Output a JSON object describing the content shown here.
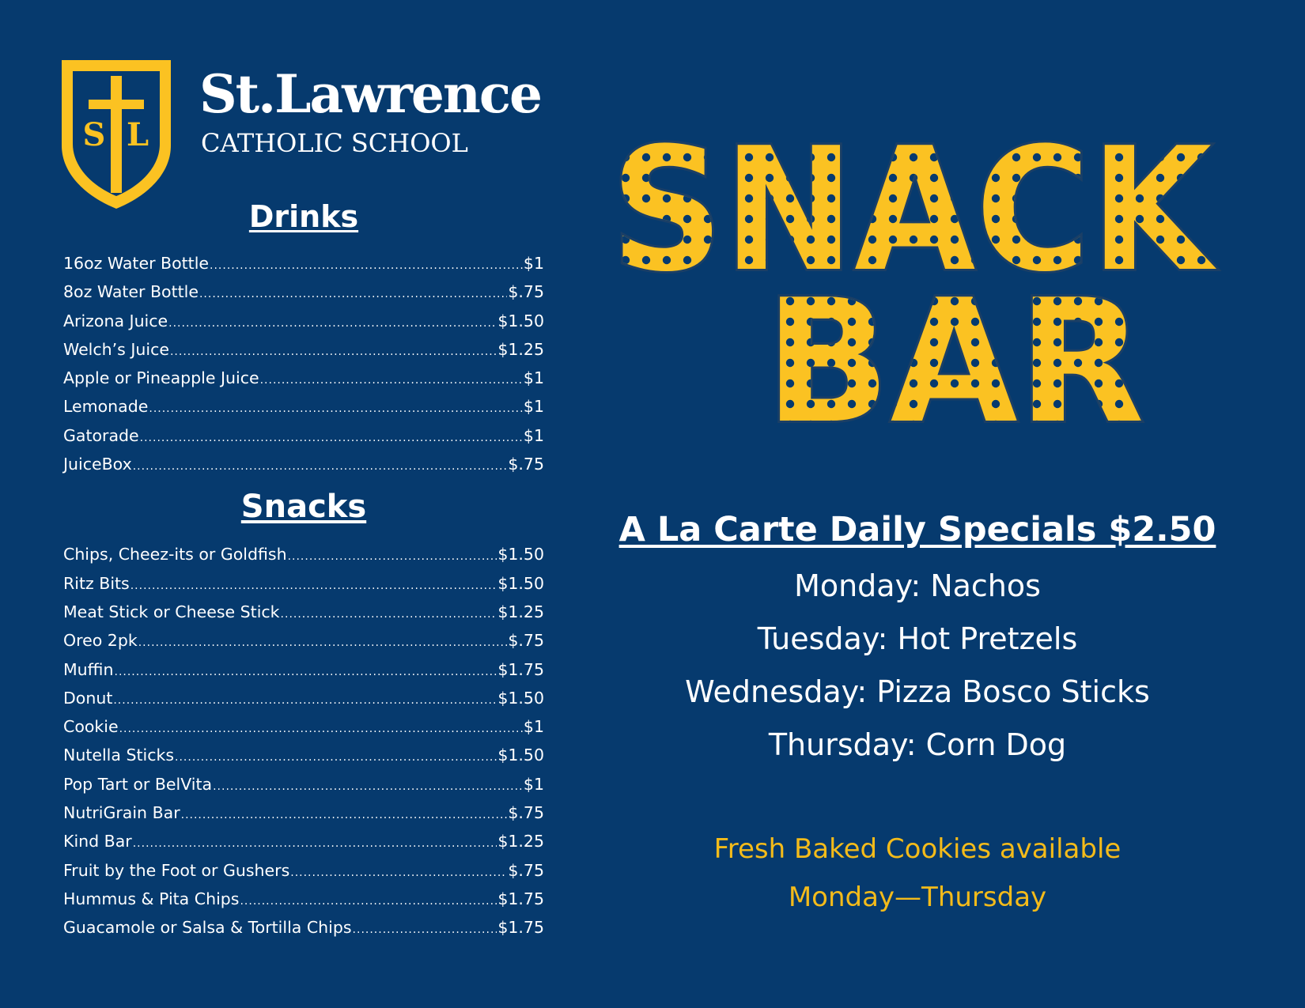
{
  "colors": {
    "background": "#063a6e",
    "gold": "#fbc222",
    "text": "#ffffff",
    "cookie_text": "#f4bb1a"
  },
  "logo": {
    "name": "St.Lawrence",
    "subtitle": "CATHOLIC SCHOOL",
    "monogram_left": "S",
    "monogram_right": "L",
    "icon": "shield-cross-icon"
  },
  "headline": {
    "line1": "SNACK",
    "line2": "BAR"
  },
  "drinks": {
    "heading": "Drinks",
    "items": [
      {
        "name": "16oz Water Bottle",
        "price": "$1"
      },
      {
        "name": "8oz Water Bottle",
        "price": "$.75"
      },
      {
        "name": "Arizona Juice",
        "price": "$1.50"
      },
      {
        "name": "Welch’s Juice",
        "price": "$1.25"
      },
      {
        "name": "Apple  or Pineapple Juice",
        "price": "$1"
      },
      {
        "name": "Lemonade",
        "price": "$1"
      },
      {
        "name": "Gatorade",
        "price": "$1"
      },
      {
        "name": "JuiceBox",
        "price": "$.75"
      }
    ]
  },
  "snacks": {
    "heading": "Snacks",
    "items": [
      {
        "name": "Chips, Cheez-its or Goldfish",
        "price": "$1.50"
      },
      {
        "name": "Ritz Bits",
        "price": "$1.50"
      },
      {
        "name": "Meat Stick or Cheese Stick",
        "price": "$1.25"
      },
      {
        "name": "Oreo 2pk",
        "price": "$.75"
      },
      {
        "name": "Muffin",
        "price": "$1.75"
      },
      {
        "name": "Donut",
        "price": "$1.50"
      },
      {
        "name": "Cookie",
        "price": "$1"
      },
      {
        "name": "Nutella Sticks",
        "price": "$1.50"
      },
      {
        "name": "Pop Tart or BelVita",
        "price": "$1"
      },
      {
        "name": "NutriGrain Bar",
        "price": "$.75"
      },
      {
        "name": "Kind Bar",
        "price": "$1.25"
      },
      {
        "name": "Fruit by the Foot or Gushers ",
        "price": "$.75"
      },
      {
        "name": "Hummus & Pita Chips",
        "price": "$1.75"
      },
      {
        "name": "Guacamole or Salsa & Tortilla Chips",
        "price": "$1.75"
      }
    ]
  },
  "specials": {
    "title": "A La Carte Daily Specials $2.50",
    "days": [
      "Monday: Nachos",
      "Tuesday: Hot Pretzels",
      "Wednesday: Pizza Bosco Sticks",
      "Thursday: Corn Dog"
    ]
  },
  "cookies_note": {
    "line1": "Fresh Baked Cookies available",
    "line2": "Monday—Thursday"
  }
}
